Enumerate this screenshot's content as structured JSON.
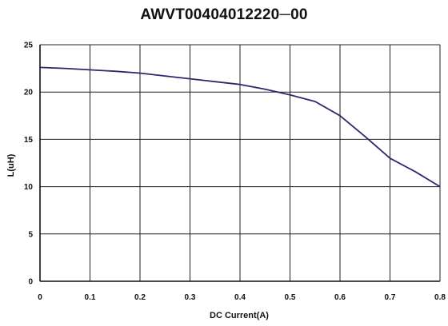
{
  "chart_data": {
    "type": "line",
    "title": "AWVT00404012220─00",
    "xlabel": "DC Current(A)",
    "ylabel": "L(uH)",
    "xlim": [
      0,
      0.8
    ],
    "ylim": [
      0,
      25
    ],
    "x_ticks": [
      "0",
      "0.1",
      "0.2",
      "0.3",
      "0.4",
      "0.5",
      "0.6",
      "0.7",
      "0.8"
    ],
    "y_ticks": [
      "0",
      "5",
      "10",
      "15",
      "20",
      "25"
    ],
    "grid": true,
    "colors": {
      "line": "#2a2a6e",
      "grid": "#222222",
      "axis": "#111111"
    },
    "series": [
      {
        "x": [
          0,
          0.05,
          0.1,
          0.15,
          0.2,
          0.25,
          0.3,
          0.35,
          0.4,
          0.45,
          0.5,
          0.55,
          0.6,
          0.65,
          0.7,
          0.75,
          0.8
        ],
        "y": [
          22.6,
          22.5,
          22.35,
          22.2,
          22.0,
          21.7,
          21.4,
          21.1,
          20.8,
          20.3,
          19.7,
          19.0,
          17.5,
          15.3,
          13.0,
          11.6,
          10.0
        ]
      }
    ]
  }
}
